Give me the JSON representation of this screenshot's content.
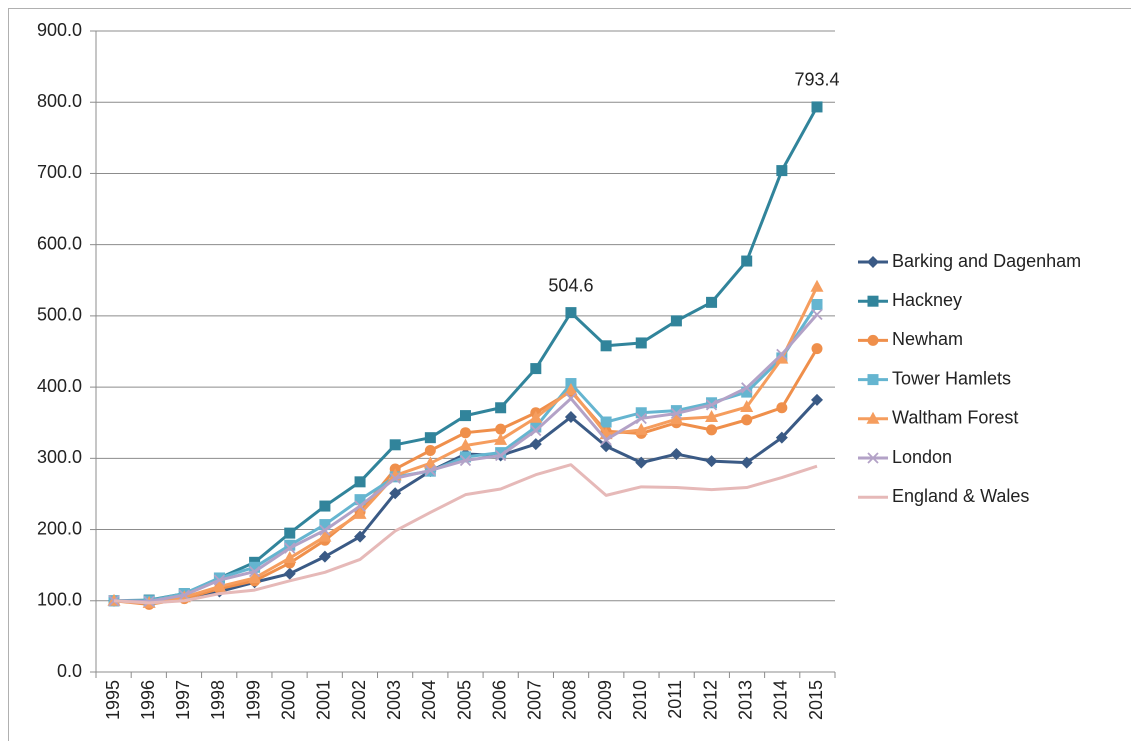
{
  "chart_data": {
    "type": "line",
    "categories": [
      "1995",
      "1996",
      "1997",
      "1998",
      "1999",
      "2000",
      "2001",
      "2002",
      "2003",
      "2004",
      "2005",
      "2006",
      "2007",
      "2008",
      "2009",
      "2010",
      "2011",
      "2012",
      "2013",
      "2014",
      "2015"
    ],
    "series": [
      {
        "name": "Barking and Dagenham",
        "color": "#3a5a85",
        "marker": "diamond",
        "values": [
          100,
          99,
          104,
          113,
          126,
          138,
          162,
          190,
          251,
          282,
          306,
          304,
          320,
          358,
          317,
          294,
          306,
          296,
          294,
          329,
          382
        ]
      },
      {
        "name": "Hackney",
        "color": "#31849b",
        "marker": "square",
        "values": [
          100,
          101,
          110,
          132,
          154,
          195,
          233,
          267,
          319,
          329,
          360,
          371,
          426,
          504.6,
          458,
          462,
          493,
          519,
          577,
          704,
          793.4
        ],
        "value_labels": [
          null,
          null,
          null,
          null,
          null,
          null,
          null,
          null,
          null,
          null,
          null,
          null,
          null,
          "504.6",
          null,
          null,
          null,
          null,
          null,
          null,
          "793.4"
        ]
      },
      {
        "name": "Newham",
        "color": "#ef8f4b",
        "marker": "circle",
        "values": [
          100,
          95,
          103,
          117,
          128,
          153,
          185,
          225,
          285,
          311,
          336,
          341,
          364,
          394,
          338,
          335,
          350,
          340,
          354,
          371,
          454
        ]
      },
      {
        "name": "Tower Hamlets",
        "color": "#65b5d0",
        "marker": "square",
        "values": [
          100,
          100,
          110,
          132,
          147,
          178,
          207,
          242,
          274,
          282,
          302,
          308,
          344,
          405,
          351,
          364,
          367,
          378,
          393,
          441,
          516
        ]
      },
      {
        "name": "Waltham Forest",
        "color": "#f59d5e",
        "marker": "triangle",
        "values": [
          100,
          97,
          105,
          120,
          132,
          160,
          190,
          222,
          276,
          293,
          318,
          326,
          357,
          396,
          334,
          340,
          355,
          358,
          372,
          440,
          541
        ]
      },
      {
        "name": "London",
        "color": "#b3a2c7",
        "marker": "x",
        "values": [
          100,
          99,
          108,
          129,
          141,
          174,
          199,
          233,
          272,
          283,
          297,
          304,
          339,
          384,
          326,
          356,
          363,
          375,
          399,
          446,
          502
        ]
      },
      {
        "name": "England & Wales",
        "color": "#e6b9b8",
        "marker": "none",
        "values": [
          100,
          97,
          100,
          110,
          115,
          128,
          140,
          158,
          198,
          224,
          249,
          257,
          277,
          291,
          248,
          260,
          259,
          256,
          259,
          273,
          289
        ]
      }
    ],
    "ylim": [
      0,
      900
    ],
    "yticks": [
      {
        "value": 0,
        "label": "0.0"
      },
      {
        "value": 100,
        "label": "100.0"
      },
      {
        "value": 200,
        "label": "200.0"
      },
      {
        "value": 300,
        "label": "300.0"
      },
      {
        "value": 400,
        "label": "400.0"
      },
      {
        "value": 500,
        "label": "500.0"
      },
      {
        "value": 600,
        "label": "600.0"
      },
      {
        "value": 700,
        "label": "700.0"
      },
      {
        "value": 800,
        "label": "800.0"
      },
      {
        "value": 900,
        "label": "900.0"
      }
    ],
    "grid": true,
    "legend": "right"
  }
}
